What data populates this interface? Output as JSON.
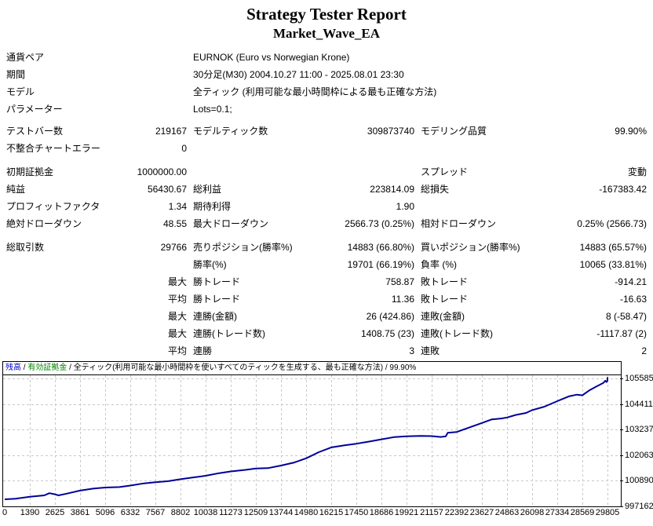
{
  "title": "Strategy Tester Report",
  "subtitle": "Market_Wave_EA",
  "rows": [
    {
      "t": "w",
      "l": "通貨ペア",
      "v": "EURNOK (Euro vs Norwegian Krone)"
    },
    {
      "t": "w",
      "l": "期間",
      "v": "30分足(M30) 2004.10.27 11:00 - 2025.08.01 23:30"
    },
    {
      "t": "w",
      "l": "モデル",
      "v": "全ティック (利用可能な最小時間枠による最も正確な方法)"
    },
    {
      "t": "w",
      "l": "パラメーター",
      "v": "Lots=0.1;"
    },
    {
      "t": "g",
      "size": 6
    },
    {
      "t": "s",
      "c": [
        "テストバー数",
        "219167",
        "モデルティック数",
        "309873740",
        "モデリング品質",
        "99.90%"
      ]
    },
    {
      "t": "s",
      "c": [
        "不整合チャートエラー",
        "0",
        "",
        "",
        "",
        ""
      ]
    },
    {
      "t": "g",
      "size": 8
    },
    {
      "t": "s",
      "c": [
        "初期証拠金",
        "1000000.00",
        "",
        "",
        "スプレッド",
        "変動"
      ]
    },
    {
      "t": "s",
      "c": [
        "純益",
        "56430.67",
        "総利益",
        "223814.09",
        "総損失",
        "-167383.42"
      ]
    },
    {
      "t": "s",
      "c": [
        "プロフィットファクタ",
        "1.34",
        "期待利得",
        "1.90",
        "",
        ""
      ]
    },
    {
      "t": "s",
      "c": [
        "絶対ドローダウン",
        "48.55",
        "最大ドローダウン",
        "2566.73 (0.25%)",
        "相対ドローダウン",
        "0.25% (2566.73)"
      ]
    },
    {
      "t": "g",
      "size": 8
    },
    {
      "t": "s",
      "c": [
        "総取引数",
        "29766",
        "売りポジション(勝率%)",
        "14883 (66.80%)",
        "買いポジション(勝率%)",
        "14883 (65.57%)"
      ]
    },
    {
      "t": "s",
      "c": [
        "",
        "",
        "勝率(%)",
        "19701 (66.19%)",
        "負率 (%)",
        "10065 (33.81%)"
      ]
    },
    {
      "t": "s",
      "c": [
        "",
        "最大",
        "勝トレード",
        "758.87",
        "敗トレード",
        "-914.21"
      ]
    },
    {
      "t": "s",
      "c": [
        "",
        "平均",
        "勝トレード",
        "11.36",
        "敗トレード",
        "-16.63"
      ]
    },
    {
      "t": "s",
      "c": [
        "",
        "最大",
        "連勝(金額)",
        "26 (424.86)",
        "連敗(金額)",
        "8 (-58.47)"
      ]
    },
    {
      "t": "s",
      "c": [
        "",
        "最大",
        "連勝(トレード数)",
        "1408.75 (23)",
        "連敗(トレード数)",
        "-1117.87 (2)"
      ]
    },
    {
      "t": "s",
      "c": [
        "",
        "平均",
        "連勝",
        "3",
        "連敗",
        "2"
      ]
    }
  ],
  "legend_parts": [
    {
      "text": "残高",
      "color": "#0000c8"
    },
    {
      "text": " / ",
      "color": "#000000"
    },
    {
      "text": "有効証拠金",
      "color": "#008000"
    },
    {
      "text": " / ",
      "color": "#000000"
    },
    {
      "text": "全ティック(利用可能な最小時間枠を使いすべてのティックを生成する、最も正確な方法) / 99.90%",
      "color": "#000000"
    }
  ],
  "colors": {
    "balance_line": "#000098",
    "grid": "#c8c8c8",
    "plot_border": "#000000"
  },
  "chart_data": {
    "type": "line",
    "title": "残高 / 有効証拠金 / 全ティック(利用可能な最小時間枠を使いすべてのティックを生成する、最も正確な方法) / 99.90%",
    "xlabel": "",
    "ylabel": "",
    "grid": true,
    "legend_position": "top",
    "x_ticks": [
      0,
      1390,
      2625,
      3861,
      5096,
      6332,
      7567,
      8802,
      10038,
      11273,
      12509,
      13744,
      14980,
      16215,
      17450,
      18686,
      19921,
      21157,
      22392,
      23627,
      24863,
      26098,
      27334,
      28569,
      29805
    ],
    "y_ticks": [
      1055855,
      1044116,
      1032378,
      1020639,
      1008901,
      997162
    ],
    "xlim": [
      0,
      30400
    ],
    "ylim": [
      997162,
      1057282
    ],
    "series": [
      {
        "name": "残高",
        "points": [
          [
            0,
            1000400
          ],
          [
            600,
            1000700
          ],
          [
            1390,
            1001600
          ],
          [
            2100,
            1002200
          ],
          [
            2350,
            1003200
          ],
          [
            2625,
            1002700
          ],
          [
            2800,
            1002200
          ],
          [
            3200,
            1003000
          ],
          [
            3861,
            1004400
          ],
          [
            4500,
            1005300
          ],
          [
            5096,
            1005800
          ],
          [
            5800,
            1006000
          ],
          [
            6332,
            1006700
          ],
          [
            7000,
            1007700
          ],
          [
            7567,
            1008200
          ],
          [
            8200,
            1008700
          ],
          [
            8802,
            1009600
          ],
          [
            9500,
            1010500
          ],
          [
            10038,
            1011200
          ],
          [
            10700,
            1012400
          ],
          [
            11273,
            1013200
          ],
          [
            12000,
            1013900
          ],
          [
            12509,
            1014500
          ],
          [
            13100,
            1014700
          ],
          [
            13744,
            1015900
          ],
          [
            14400,
            1017300
          ],
          [
            14980,
            1019200
          ],
          [
            15600,
            1022000
          ],
          [
            16215,
            1024200
          ],
          [
            16900,
            1025200
          ],
          [
            17450,
            1025900
          ],
          [
            18100,
            1026900
          ],
          [
            18686,
            1027900
          ],
          [
            19300,
            1028900
          ],
          [
            19921,
            1029300
          ],
          [
            20600,
            1029500
          ],
          [
            21157,
            1029400
          ],
          [
            21600,
            1029000
          ],
          [
            21850,
            1029300
          ],
          [
            21950,
            1030900
          ],
          [
            22392,
            1031300
          ],
          [
            23000,
            1033300
          ],
          [
            23627,
            1035400
          ],
          [
            24100,
            1037000
          ],
          [
            24600,
            1037500
          ],
          [
            24863,
            1037900
          ],
          [
            25300,
            1039100
          ],
          [
            25800,
            1040000
          ],
          [
            26098,
            1041300
          ],
          [
            26700,
            1042900
          ],
          [
            27334,
            1045400
          ],
          [
            27900,
            1047600
          ],
          [
            28300,
            1048400
          ],
          [
            28569,
            1048100
          ],
          [
            28900,
            1050300
          ],
          [
            29300,
            1052300
          ],
          [
            29600,
            1053800
          ],
          [
            29700,
            1054800
          ],
          [
            29760,
            1054200
          ],
          [
            29805,
            1054900
          ],
          [
            30000,
            1055600
          ],
          [
            30200,
            1056400
          ]
        ]
      }
    ]
  }
}
